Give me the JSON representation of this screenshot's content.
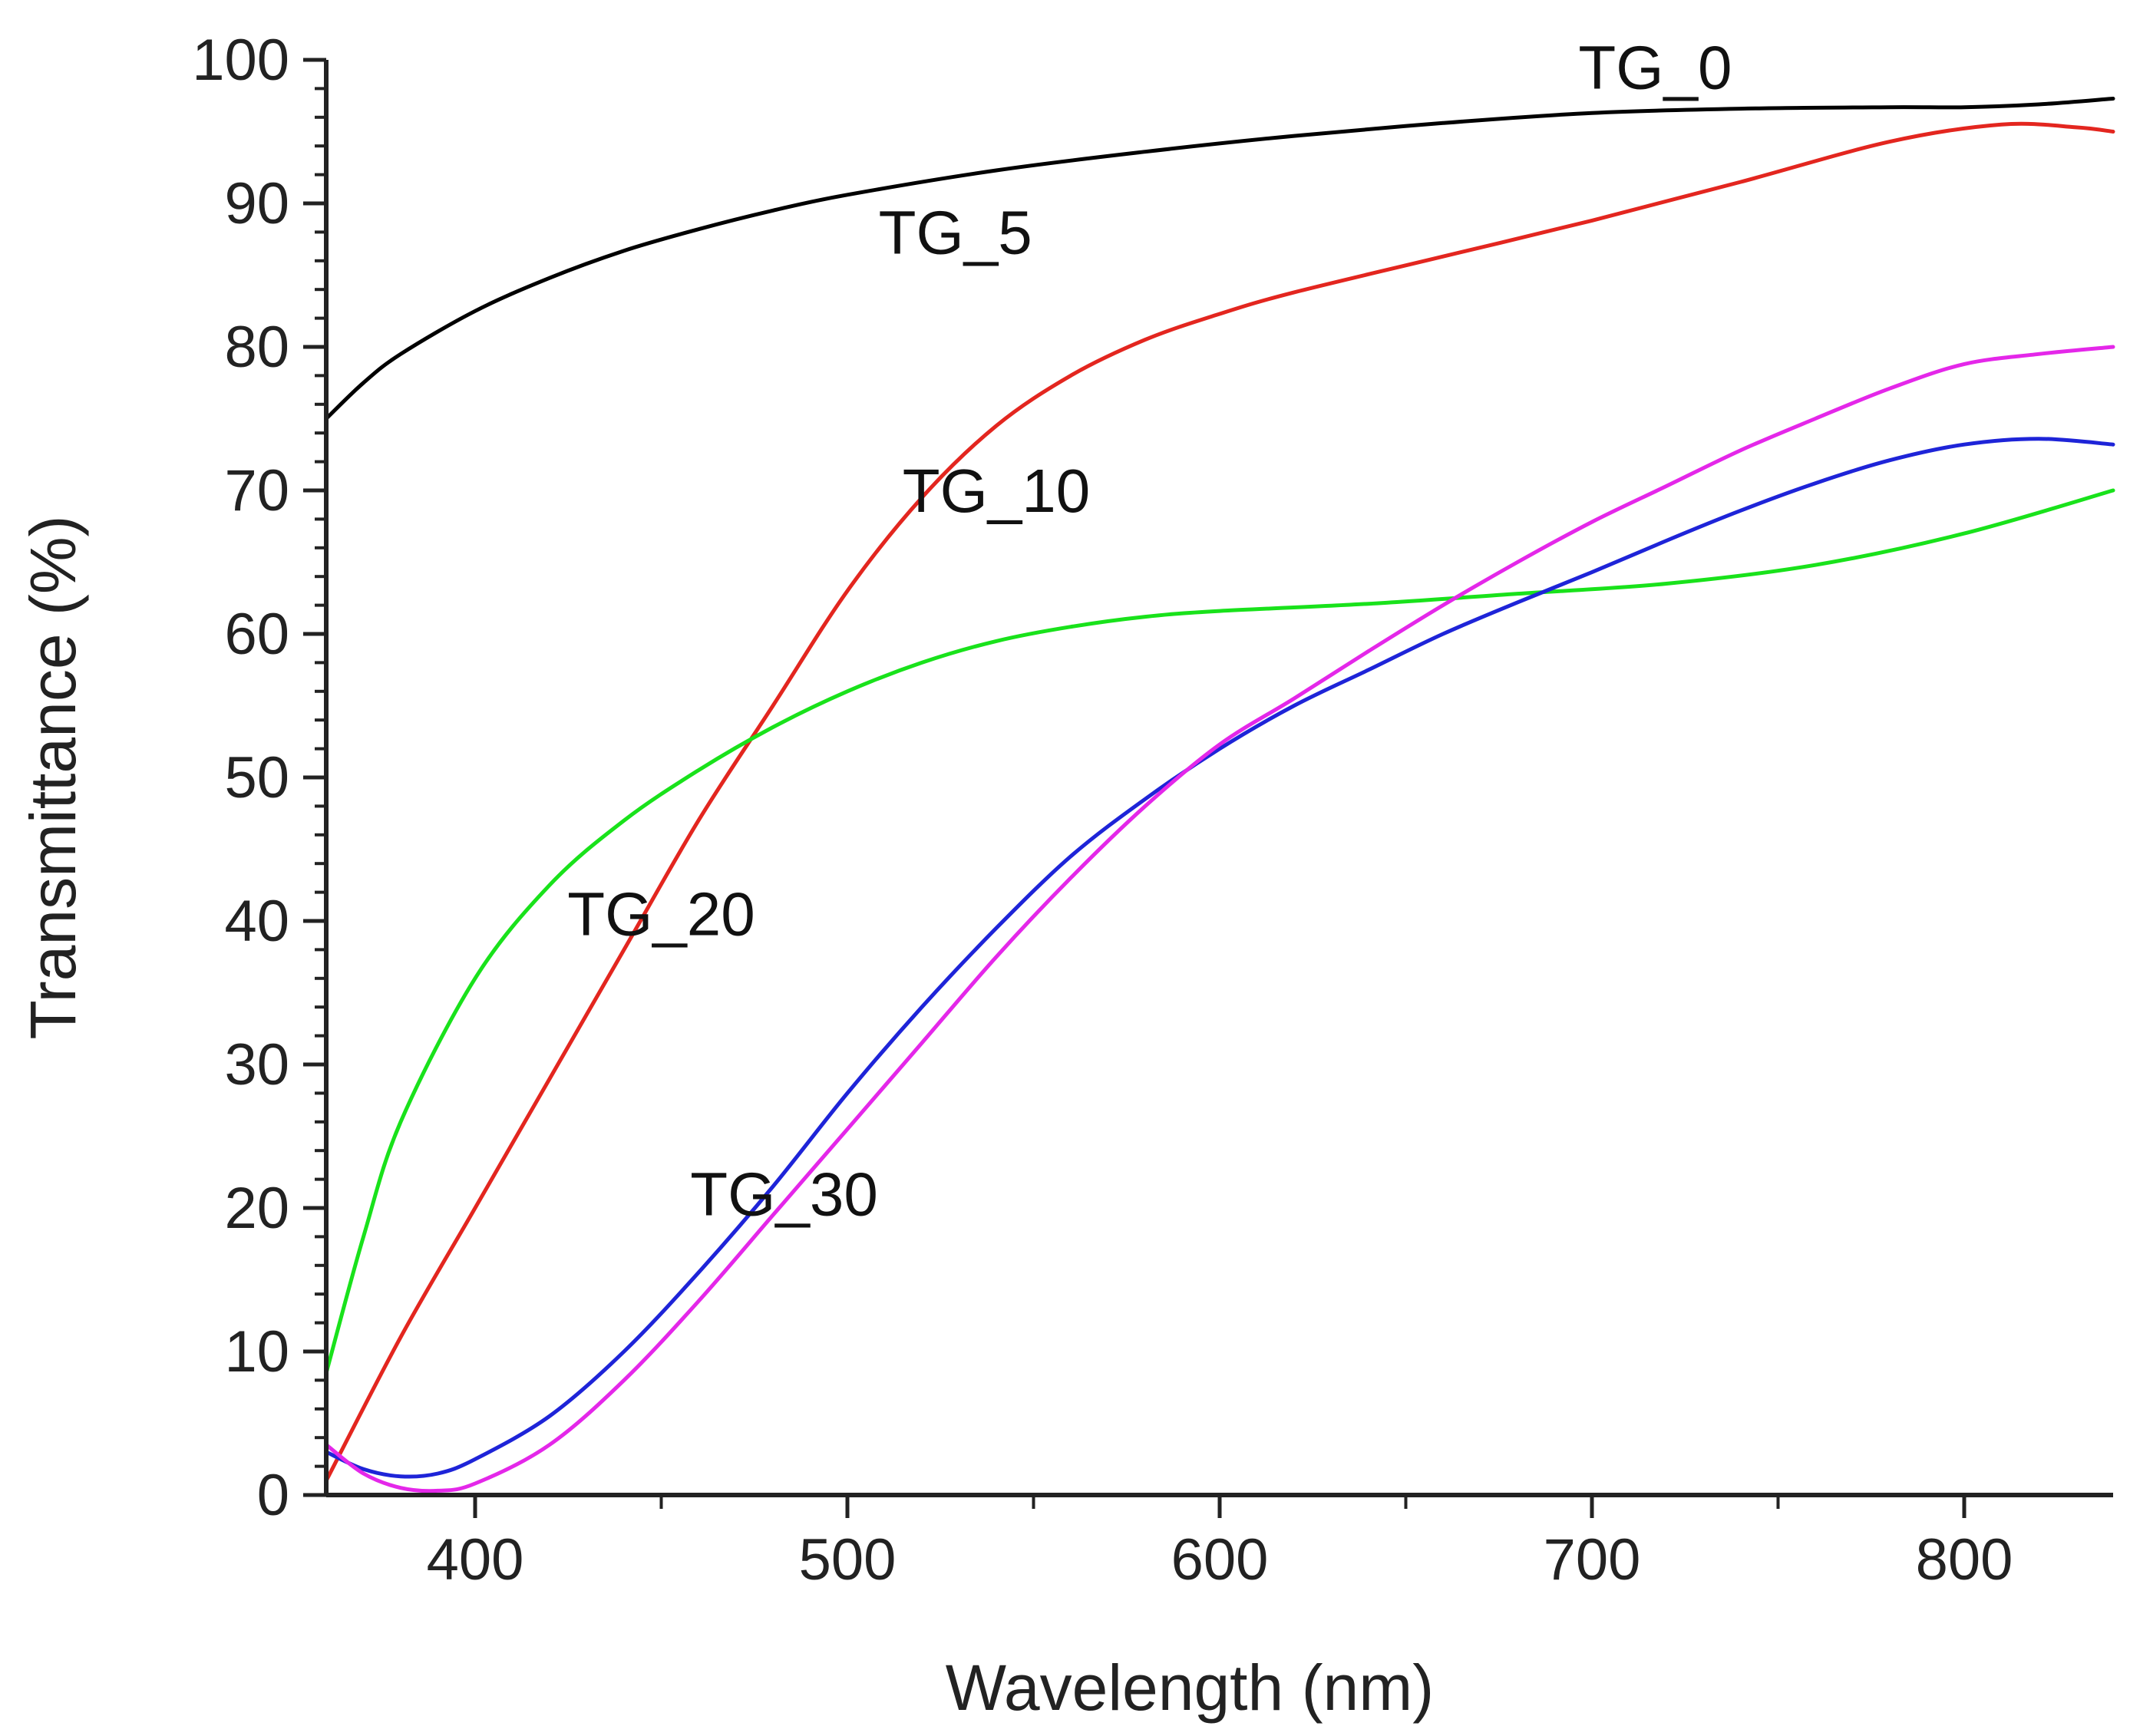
{
  "chart_data": {
    "type": "line",
    "title": "",
    "xlabel": "Wavelength (nm)",
    "ylabel": "Transmittance (%)",
    "xlim": [
      360,
      840
    ],
    "ylim": [
      0,
      100
    ],
    "xticks": [
      400,
      500,
      600,
      700,
      800
    ],
    "yticks": [
      0,
      10,
      20,
      30,
      40,
      50,
      60,
      70,
      80,
      90,
      100
    ],
    "grid": false,
    "legend": "inline labels",
    "series": [
      {
        "name": "TG_0",
        "color": "#000000",
        "x": [
          360,
          370,
          380,
          400,
          420,
          440,
          460,
          480,
          500,
          540,
          580,
          620,
          660,
          700,
          740,
          780,
          800,
          820,
          840
        ],
        "y": [
          75,
          77.5,
          79.5,
          82.5,
          84.8,
          86.7,
          88.2,
          89.5,
          90.6,
          92.3,
          93.6,
          94.7,
          95.6,
          96.3,
          96.6,
          96.7,
          96.7,
          96.9,
          97.3
        ]
      },
      {
        "name": "TG_5",
        "color": "#e3261f",
        "x": [
          360,
          380,
          400,
          420,
          440,
          460,
          480,
          500,
          520,
          540,
          560,
          580,
          600,
          620,
          660,
          700,
          740,
          780,
          810,
          830,
          840
        ],
        "y": [
          1,
          11,
          20,
          29,
          38,
          47,
          55,
          63,
          69.5,
          74.5,
          78,
          80.5,
          82.3,
          83.8,
          86.3,
          88.8,
          91.5,
          94.3,
          95.5,
          95.3,
          95
        ]
      },
      {
        "name": "TG_10",
        "color": "#19e21b",
        "x": [
          360,
          370,
          380,
          400,
          420,
          440,
          460,
          480,
          500,
          520,
          540,
          560,
          580,
          600,
          640,
          680,
          720,
          760,
          800,
          840
        ],
        "y": [
          8.5,
          18,
          26,
          36,
          42.5,
          47,
          50.5,
          53.5,
          56,
          58,
          59.5,
          60.5,
          61.2,
          61.6,
          62.1,
          62.8,
          63.5,
          64.8,
          67,
          70
        ]
      },
      {
        "name": "TG_20",
        "color": "#1e24d8",
        "x": [
          360,
          370,
          380,
          390,
          400,
          420,
          440,
          460,
          480,
          500,
          520,
          540,
          560,
          580,
          600,
          620,
          640,
          660,
          680,
          700,
          720,
          740,
          760,
          780,
          800,
          820,
          840
        ],
        "y": [
          3,
          1.8,
          1.3,
          1.5,
          2.5,
          5.5,
          10,
          15.5,
          21.5,
          28,
          34,
          39.5,
          44.5,
          48.5,
          52,
          55,
          57.5,
          60,
          62.2,
          64.3,
          66.5,
          68.6,
          70.5,
          72.1,
          73.2,
          73.6,
          73.2
        ]
      },
      {
        "name": "TG_30",
        "color": "#e427e9",
        "x": [
          360,
          370,
          380,
          390,
          400,
          420,
          440,
          460,
          480,
          500,
          520,
          540,
          560,
          580,
          600,
          620,
          640,
          660,
          680,
          700,
          720,
          740,
          760,
          780,
          800,
          820,
          840
        ],
        "y": [
          3.5,
          1.5,
          0.5,
          0.3,
          0.8,
          3.5,
          8,
          13.5,
          19.5,
          25.5,
          31.5,
          37.5,
          43,
          48,
          52.3,
          55.5,
          58.8,
          62,
          65,
          67.8,
          70.3,
          72.8,
          75,
          77.1,
          78.8,
          79.5,
          80
        ]
      }
    ],
    "annotations": [
      {
        "text": "TG_0",
        "x": 717,
        "y": 98
      },
      {
        "text": "TG_5",
        "x": 529,
        "y": 86.5
      },
      {
        "text": "TG_10",
        "x": 540,
        "y": 68.5
      },
      {
        "text": "TG_20",
        "x": 450,
        "y": 39
      },
      {
        "text": "TG_30",
        "x": 483,
        "y": 19.5
      }
    ]
  }
}
